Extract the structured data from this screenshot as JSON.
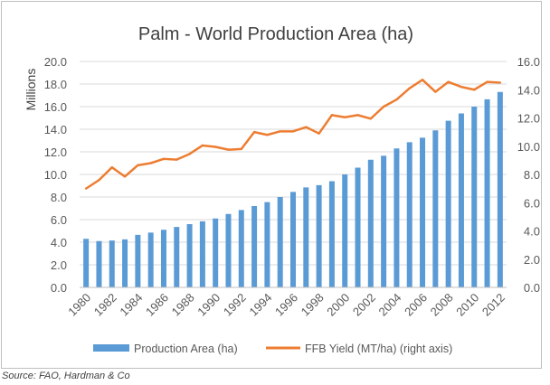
{
  "source_note": "Source: FAO, Hardman & Co",
  "colors": {
    "bar": "#5b9bd5",
    "line": "#ed7d31",
    "grid": "#d9d9d9",
    "text": "#595959",
    "title": "#404040"
  },
  "chart_data": {
    "type": "bar+line",
    "title": "Palm - World Production Area (ha)",
    "ylabel": "Millions",
    "xlabel": "",
    "ylim": [
      0,
      20
    ],
    "y2lim": [
      0,
      16
    ],
    "yticks": [
      "0.0",
      "2.0",
      "4.0",
      "6.0",
      "8.0",
      "10.0",
      "12.0",
      "14.0",
      "16.0",
      "18.0",
      "20.0"
    ],
    "y2ticks": [
      "0.0",
      "2.0",
      "4.0",
      "6.0",
      "8.0",
      "10.0",
      "12.0",
      "14.0",
      "16.0"
    ],
    "grid": true,
    "legend_position": "bottom",
    "categories": [
      "1980",
      "1981",
      "1982",
      "1983",
      "1984",
      "1985",
      "1986",
      "1987",
      "1988",
      "1989",
      "1990",
      "1991",
      "1992",
      "1993",
      "1994",
      "1995",
      "1996",
      "1997",
      "1998",
      "1999",
      "2000",
      "2001",
      "2002",
      "2003",
      "2004",
      "2005",
      "2006",
      "2007",
      "2008",
      "2009",
      "2010",
      "2011",
      "2012"
    ],
    "xtick_labels": [
      "1980",
      "",
      "1982",
      "",
      "1984",
      "",
      "1986",
      "",
      "1988",
      "",
      "1990",
      "",
      "1992",
      "",
      "1994",
      "",
      "1996",
      "",
      "1998",
      "",
      "2000",
      "",
      "2002",
      "",
      "2004",
      "",
      "2006",
      "",
      "2008",
      "",
      "2010",
      "",
      "2012"
    ],
    "series": [
      {
        "name": "Production Area (ha)",
        "type": "bar",
        "axis": "left",
        "values": [
          4.3,
          4.1,
          4.15,
          4.25,
          4.65,
          4.85,
          5.1,
          5.35,
          5.6,
          5.85,
          6.1,
          6.5,
          6.85,
          7.2,
          7.55,
          8.0,
          8.45,
          8.85,
          9.05,
          9.4,
          10.0,
          10.6,
          11.3,
          11.65,
          12.3,
          12.85,
          13.25,
          13.9,
          14.75,
          15.4,
          16.0,
          16.65,
          17.3
        ]
      },
      {
        "name": "FFB Yield (MT/ha) (right axis)",
        "type": "line",
        "axis": "right",
        "values": [
          7.0,
          7.6,
          8.5,
          7.85,
          8.65,
          8.8,
          9.1,
          9.05,
          9.45,
          10.05,
          9.95,
          9.75,
          9.8,
          11.0,
          10.8,
          11.05,
          11.05,
          11.35,
          10.9,
          12.2,
          12.05,
          12.2,
          11.95,
          12.8,
          13.3,
          14.1,
          14.7,
          13.85,
          14.55,
          14.2,
          14.0,
          14.55,
          14.5
        ]
      }
    ]
  }
}
